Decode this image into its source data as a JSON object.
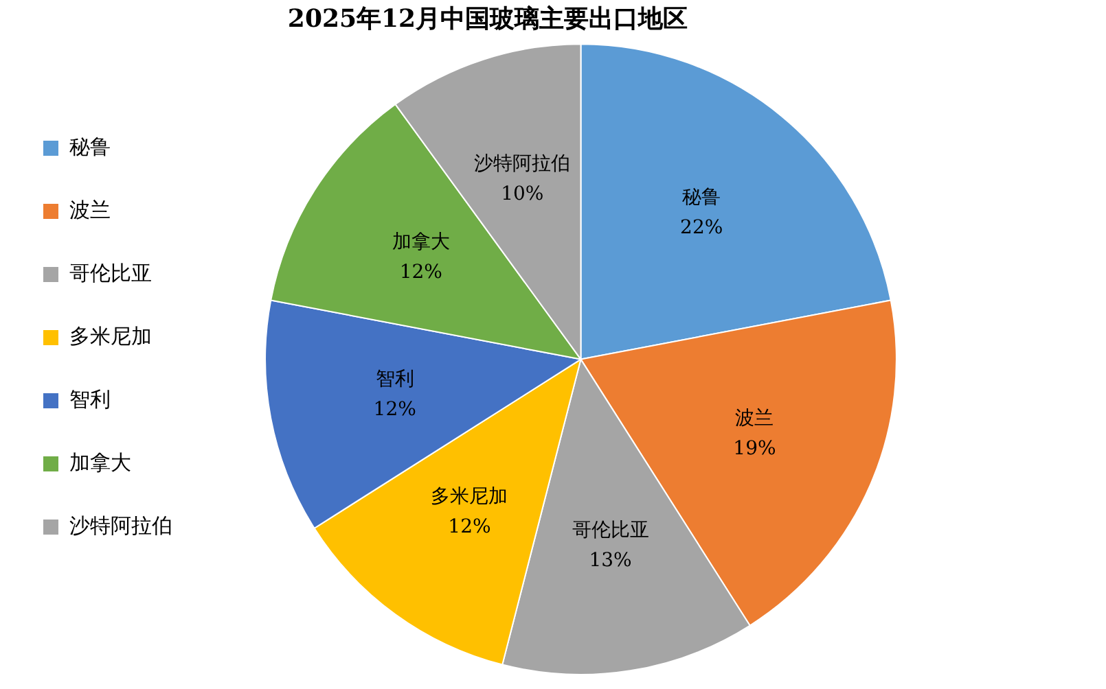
{
  "chart_data": {
    "type": "pie",
    "title": "2025年12月中国玻璃主要出口地区",
    "categories": [
      "秘鲁",
      "波兰",
      "哥伦比亚",
      "多米尼加",
      "智利",
      "加拿大",
      "沙特阿拉伯"
    ],
    "values": [
      22,
      19,
      13,
      12,
      12,
      12,
      10
    ],
    "value_labels": [
      "22%",
      "19%",
      "13%",
      "12%",
      "12%",
      "12%",
      "10%"
    ],
    "colors": [
      "#5b9bd5",
      "#ed7d31",
      "#a5a5a5",
      "#ffc000",
      "#4472c4",
      "#70ad47",
      "#a5a5a5"
    ],
    "legend": "left"
  }
}
